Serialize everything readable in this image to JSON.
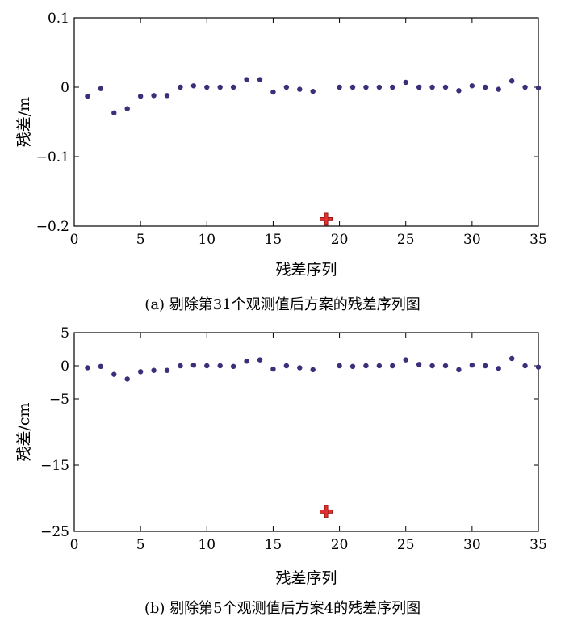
{
  "chart_data": [
    {
      "type": "scatter",
      "panel": "a",
      "caption": "(a) 剔除第31个观测值后方案的残差序列图",
      "xlabel": "残差序列",
      "ylabel": "残差/m",
      "xlim": [
        0,
        35
      ],
      "ylim": [
        -0.2,
        0.1
      ],
      "xticks": [
        0,
        5,
        10,
        15,
        20,
        25,
        30,
        35
      ],
      "yticks": [
        -0.2,
        -0.1,
        0,
        0.1
      ],
      "xtick_labels": [
        "0",
        "5",
        "10",
        "15",
        "20",
        "25",
        "30",
        "35"
      ],
      "ytick_labels": [
        "−0.2",
        "−0.1",
        "0",
        "0.1"
      ],
      "grid": false,
      "series": [
        {
          "marker": "dot",
          "color": "#3d2d7a",
          "x": [
            1,
            2,
            3,
            4,
            5,
            6,
            7,
            8,
            9,
            10,
            11,
            12,
            13,
            14,
            15,
            16,
            17,
            18,
            20,
            21,
            22,
            23,
            24,
            25,
            26,
            27,
            28,
            29,
            30,
            31,
            32,
            33,
            34,
            35
          ],
          "y": [
            -0.013,
            -0.002,
            -0.037,
            -0.031,
            -0.013,
            -0.012,
            -0.012,
            0.0,
            0.002,
            0.0,
            0.0,
            0.0,
            0.011,
            0.011,
            -0.007,
            0.0,
            -0.003,
            -0.006,
            0.0,
            0.0,
            0.0,
            0.0,
            0.0,
            0.007,
            0.0,
            0.0,
            0.0,
            -0.005,
            0.002,
            0.0,
            -0.003,
            0.009,
            0.0,
            -0.001
          ]
        },
        {
          "marker": "cross",
          "color": "#e03030",
          "x": [
            19
          ],
          "y": [
            -0.19
          ]
        }
      ]
    },
    {
      "type": "scatter",
      "panel": "b",
      "caption": "(b) 剔除第5个观测值后方案4的残差序列图",
      "xlabel": "残差序列",
      "ylabel": "残差/cm",
      "xlim": [
        0,
        35
      ],
      "ylim": [
        -25,
        5
      ],
      "xticks": [
        0,
        5,
        10,
        15,
        20,
        25,
        30,
        35
      ],
      "yticks": [
        -25,
        -15,
        -5,
        0,
        5
      ],
      "xtick_labels": [
        "0",
        "5",
        "10",
        "15",
        "20",
        "25",
        "30",
        "35"
      ],
      "ytick_labels": [
        "−25",
        "−15",
        "−5",
        "0",
        "5"
      ],
      "grid": false,
      "series": [
        {
          "marker": "dot",
          "color": "#3d2d7a",
          "x": [
            1,
            2,
            3,
            4,
            5,
            6,
            7,
            8,
            9,
            10,
            11,
            12,
            13,
            14,
            15,
            16,
            17,
            18,
            20,
            21,
            22,
            23,
            24,
            25,
            26,
            27,
            28,
            29,
            30,
            31,
            32,
            33,
            34,
            35
          ],
          "y": [
            -0.3,
            -0.1,
            -1.3,
            -2.0,
            -0.9,
            -0.7,
            -0.7,
            0.0,
            0.1,
            0.0,
            0.0,
            -0.1,
            0.7,
            0.9,
            -0.5,
            0.0,
            -0.3,
            -0.6,
            0.0,
            -0.1,
            0.0,
            0.0,
            0.0,
            0.9,
            0.2,
            0.0,
            0.0,
            -0.6,
            0.1,
            0.0,
            -0.4,
            1.1,
            0.0,
            -0.2
          ]
        },
        {
          "marker": "cross",
          "color": "#e03030",
          "x": [
            19
          ],
          "y": [
            -22.0
          ]
        }
      ]
    }
  ]
}
